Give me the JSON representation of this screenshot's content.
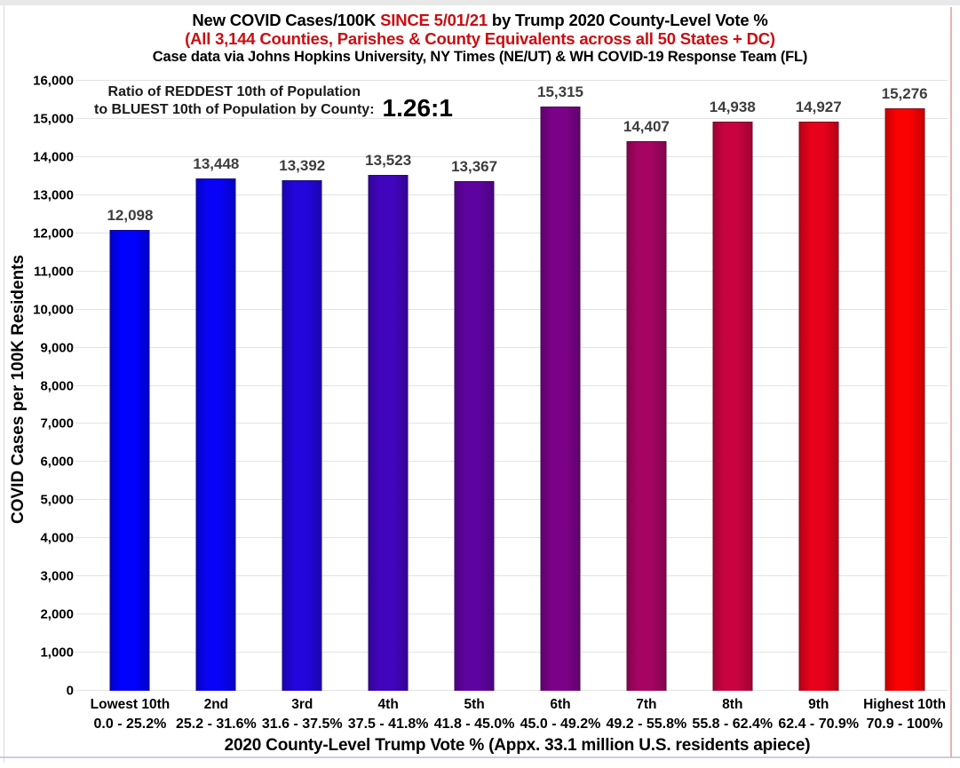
{
  "header": {
    "line1_pre": "New COVID Cases/100K ",
    "line1_red": "SINCE 5/01/21",
    "line1_post": " by Trump 2020 County-Level Vote %",
    "line2": "(All 3,144 Counties, Parishes & County Equivalents across all 50 States + DC)",
    "line3": "Case data via Johns Hopkins University, NY Times (NE/UT) & WH COVID-19 Response Team (FL)"
  },
  "annotation": {
    "line1": "Ratio of REDDEST 10th of Population",
    "line2": "to BLUEST 10th of Population by County:",
    "ratio": "1.26:1"
  },
  "colors": {
    "accent_red": "#C90E11",
    "data_label_gray": "#3D3D3D",
    "gridline": "#E3E3E3"
  },
  "chart_data": {
    "type": "bar",
    "title": "New COVID Cases/100K SINCE 5/01/21 by Trump 2020 County-Level Vote %",
    "subtitle": "(All 3,144 Counties, Parishes & County Equivalents across all 50 States + DC)",
    "source_note": "Case data via Johns Hopkins University, NY Times (NE/UT) & WH COVID-19 Response Team (FL)",
    "ylabel": "COVID Cases per 100K Residents",
    "xlabel": "2020 County-Level Trump Vote % (Appx. 33.1 million U.S. residents apiece)",
    "ylim": [
      0,
      16000
    ],
    "ytick_interval": 1000,
    "ytick_labels": [
      "0",
      "1,000",
      "2,000",
      "3,000",
      "4,000",
      "5,000",
      "6,000",
      "7,000",
      "8,000",
      "9,000",
      "10,000",
      "11,000",
      "12,000",
      "13,000",
      "14,000",
      "15,000",
      "16,000"
    ],
    "grid": "horizontal",
    "legend": "none",
    "categories": [
      "Lowest 10th",
      "2nd",
      "3rd",
      "4th",
      "5th",
      "6th",
      "7th",
      "8th",
      "9th",
      "Highest 10th"
    ],
    "category_ranges": [
      "0.0 - 25.2%",
      "25.2 - 31.6%",
      "31.6 - 37.5%",
      "37.5 - 41.8%",
      "41.8 - 45.0%",
      "45.0 - 49.2%",
      "49.2 - 55.8%",
      "55.8 - 62.4%",
      "62.4 - 70.9%",
      "70.9 - 100%"
    ],
    "values": [
      12098,
      13448,
      13392,
      13523,
      13367,
      15315,
      14407,
      14938,
      14927,
      15276
    ],
    "value_labels": [
      "12,098",
      "13,448",
      "13,392",
      "13,523",
      "13,367",
      "15,315",
      "14,407",
      "14,938",
      "14,927",
      "15,276"
    ],
    "bar_colors": [
      "#0101FE",
      "#0803F6",
      "#2206DC",
      "#4105BE",
      "#5F03A0",
      "#7B0288",
      "#A50462",
      "#C80340",
      "#E6021B",
      "#FB0102"
    ],
    "annotation": "Ratio of REDDEST 10th of Population to BLUEST 10th of Population by County: 1.26:1"
  }
}
